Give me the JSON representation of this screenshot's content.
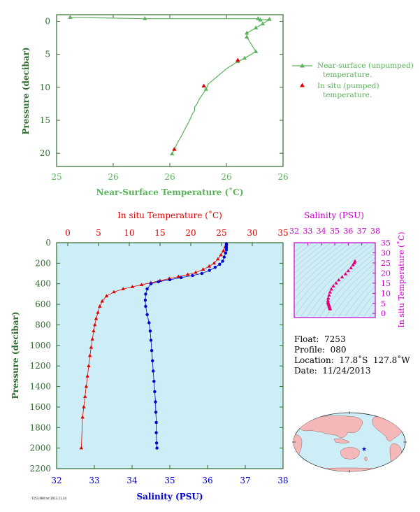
{
  "chart_data": [
    {
      "type": "line",
      "xlabel": "Near-Surface Temperature (˚C)",
      "ylabel": "Pressure (decibar)",
      "xtick_labels": [
        "25",
        "26",
        "26",
        "26",
        "26"
      ],
      "ytick_labels": [
        "0",
        "5",
        "10",
        "15",
        "20"
      ],
      "xlim": [
        25.2,
        26.2
      ],
      "ylim": [
        22,
        -1
      ],
      "legend": {
        "placement": "right",
        "entries": [
          "Near-surface (unpumped) temperature.",
          "In situ (pumped) temperature."
        ]
      },
      "series": [
        {
          "name": "Near-surface (unpumped) temperature.",
          "color": "#5ab25a",
          "marker": "triangle",
          "x": [
            25.26,
            25.59,
            26.09,
            26.1,
            26.14,
            26.11,
            26.08,
            26.04,
            26.04,
            26.08,
            26.03,
            26.0,
            25.95,
            25.87,
            25.86,
            25.85,
            25.84,
            25.83,
            25.82,
            25.81,
            25.81,
            25.8,
            25.79,
            25.78,
            25.77,
            25.76,
            25.75,
            25.74,
            25.73,
            25.72,
            25.71
          ],
          "y": [
            -0.6,
            -0.4,
            -0.4,
            -0.2,
            -0.3,
            0.4,
            1.0,
            1.8,
            2.4,
            4.6,
            5.6,
            6.1,
            7.2,
            9.5,
            10.3,
            10.8,
            11.3,
            11.8,
            12.5,
            13.0,
            13.5,
            14.0,
            14.8,
            15.5,
            16.1,
            16.8,
            17.5,
            18.0,
            18.7,
            19.4,
            20.1
          ]
        },
        {
          "name": "In situ (pumped) temperature.",
          "color": "#e00000",
          "marker": "triangle",
          "x": [
            26.0,
            25.85,
            25.72
          ],
          "y": [
            5.9,
            9.8,
            19.4
          ]
        }
      ]
    },
    {
      "type": "line",
      "xlabel": "Salinity (PSU)",
      "x2label": "In situ Temperature (˚C)",
      "ylabel": "Pressure (decibar)",
      "xlim": [
        32,
        38
      ],
      "x2lim": [
        0,
        35
      ],
      "ylim": [
        2200,
        0
      ],
      "xtick_labels": [
        "32",
        "33",
        "34",
        "35",
        "36",
        "37",
        "38"
      ],
      "x2tick_labels": [
        "0",
        "5",
        "10",
        "15",
        "20",
        "25",
        "30",
        "35"
      ],
      "ytick_labels": [
        "0",
        "200",
        "400",
        "600",
        "800",
        "1000",
        "1200",
        "1400",
        "1600",
        "1800",
        "2000",
        "2200"
      ],
      "series": [
        {
          "name": "In situ Temperature (˚C)",
          "color": "#e00000",
          "marker": "triangle",
          "temperature": [
            25.8,
            25.6,
            25.3,
            24.9,
            24.4,
            23.8,
            23.0,
            22.0,
            20.8,
            19.5,
            18.0,
            16.5,
            15.0,
            13.5,
            12.0,
            10.5,
            9.0,
            7.5,
            6.3,
            5.6,
            5.2,
            4.9,
            4.6,
            4.4,
            4.2,
            4.0,
            3.8,
            3.6,
            3.4,
            3.2,
            3.0,
            2.8,
            2.6,
            2.4,
            2.2
          ],
          "pressure": [
            10,
            40,
            80,
            120,
            160,
            200,
            230,
            260,
            290,
            310,
            330,
            350,
            370,
            390,
            410,
            430,
            450,
            480,
            520,
            570,
            620,
            680,
            740,
            800,
            860,
            940,
            1020,
            1100,
            1200,
            1300,
            1400,
            1500,
            1600,
            1700,
            2000
          ]
        },
        {
          "name": "Salinity (PSU)",
          "color": "#0000d0",
          "marker": "circle",
          "salinity": [
            36.5,
            36.5,
            36.5,
            36.5,
            36.48,
            36.44,
            36.4,
            36.32,
            36.2,
            36.05,
            35.85,
            35.6,
            35.3,
            35.0,
            34.7,
            34.5,
            34.4,
            34.36,
            34.35,
            34.36,
            34.4,
            34.45,
            34.48,
            34.5,
            34.52,
            34.54,
            34.56,
            34.58,
            34.6,
            34.62,
            34.63,
            34.64,
            34.64,
            34.65,
            34.66
          ],
          "pressure": [
            10,
            30,
            50,
            70,
            100,
            140,
            180,
            210,
            240,
            270,
            300,
            320,
            340,
            360,
            380,
            400,
            450,
            500,
            560,
            620,
            700,
            780,
            860,
            950,
            1050,
            1150,
            1250,
            1350,
            1450,
            1550,
            1650,
            1750,
            1850,
            1950,
            2000
          ]
        }
      ]
    },
    {
      "type": "scatter",
      "xlabel": "Salinity (PSU)",
      "ylabel": "In situ Temperature (˚C)",
      "xlim": [
        32,
        38
      ],
      "ylim": [
        -2,
        35
      ],
      "xtick_labels": [
        "32",
        "33",
        "34",
        "35",
        "36",
        "37",
        "38"
      ],
      "ytick_labels": [
        "0",
        "5",
        "10",
        "15",
        "20",
        "25",
        "30",
        "35"
      ],
      "color": "#e0007a",
      "salinity": [
        36.5,
        36.45,
        36.35,
        36.2,
        36.0,
        35.8,
        35.55,
        35.3,
        35.1,
        34.9,
        34.75,
        34.65,
        34.58,
        34.52,
        34.5,
        34.5,
        34.52,
        34.55,
        34.58,
        34.6,
        34.62,
        34.64,
        34.66
      ],
      "temperature": [
        25.8,
        25.0,
        24.0,
        22.5,
        21.0,
        19.5,
        18.0,
        16.5,
        15.0,
        13.5,
        12.0,
        10.5,
        9.0,
        7.5,
        6.3,
        5.5,
        5.0,
        4.5,
        4.0,
        3.5,
        3.0,
        2.6,
        2.2
      ]
    }
  ],
  "plot1": {
    "xlabel": "Near-Surface Temperature (˚C)",
    "ylabel": "Pressure (decibar)",
    "legend_1": "Near-surface (unpumped)",
    "legend_1b": "temperature.",
    "legend_2": "In situ (pumped)",
    "legend_2b": "temperature."
  },
  "plot2": {
    "top_label": "In situ Temperature (˚C)",
    "bottom_label": "Salinity (PSU)",
    "ylabel": "Pressure (decibar)"
  },
  "plot3": {
    "top_label": "Salinity (PSU)",
    "right_label": "In situ Temperature (˚C)"
  },
  "info": {
    "float": "Float:  7253",
    "profile": "Profile:  080",
    "location": "Location:  17.8˚S  127.8˚W",
    "date": "Date:  11/24/2013"
  },
  "footer": "7253.080.txt 2013.11.24",
  "colors": {
    "green": "#5ab25a",
    "red": "#e00000",
    "blue": "#0000d0",
    "magenta": "#cc00cc",
    "pink": "#e0007a",
    "plot_bg": "#cdeef7",
    "axis": "#2f6b2f"
  }
}
